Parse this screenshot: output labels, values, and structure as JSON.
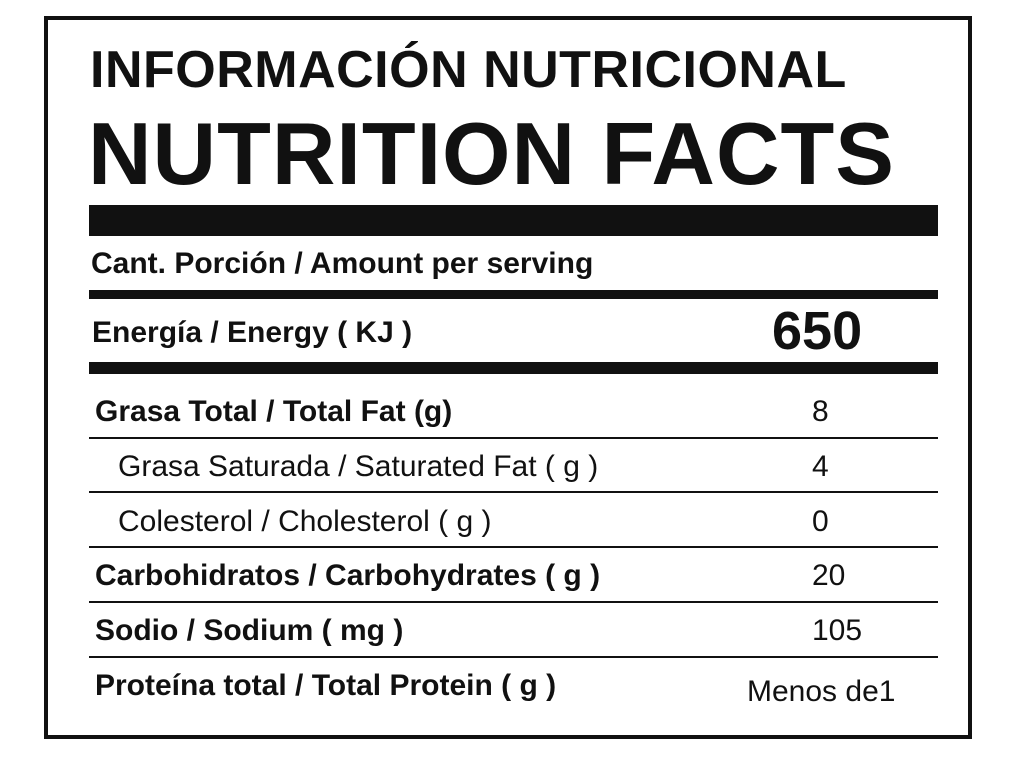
{
  "label": {
    "title_es": "INFORMACIÓN NUTRICIONAL",
    "title_en": "NUTRITION FACTS",
    "serving": "Cant. Porción / Amount per serving",
    "energy": {
      "label": "Energía / Energy ( KJ )",
      "value": "650"
    },
    "rows": [
      {
        "label": "Grasa Total / Total Fat (g)",
        "value": "8"
      },
      {
        "label": "Grasa Saturada / Saturated Fat ( g )",
        "value": "4"
      },
      {
        "label": "Colesterol / Cholesterol ( g )",
        "value": "0"
      },
      {
        "label": "Carbohidratos / Carbohydrates ( g )",
        "value": "20"
      },
      {
        "label": "Sodio / Sodium ( mg )",
        "value": "105"
      },
      {
        "label": "Proteína total / Total Protein ( g )",
        "value": "Menos de1"
      }
    ]
  }
}
